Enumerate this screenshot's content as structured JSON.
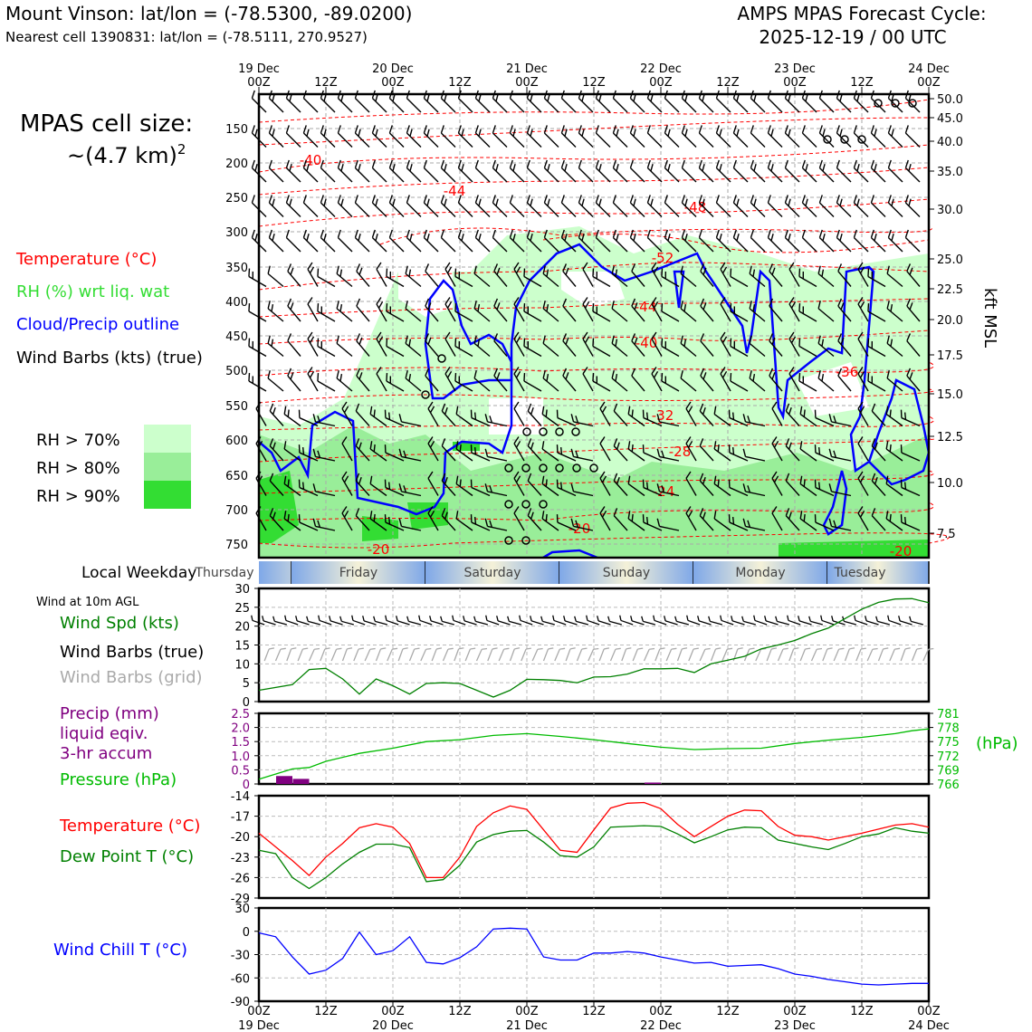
{
  "header": {
    "location_line": "Mount Vinson: lat/lon = (-78.5300, -89.0200)",
    "cell_line": "Nearest cell 1390831: lat/lon = (-78.5111, 270.9527)",
    "cycle_line1": "AMPS MPAS Forecast Cycle:",
    "cycle_line2": "2025-12-19 / 00 UTC"
  },
  "side": {
    "cell_size_1": "MPAS cell size:",
    "cell_size_2": "~(4.7 km)",
    "cell_size_sup": "2",
    "legend_temperature": "Temperature (°C)",
    "legend_rh": "RH (%) wrt liq. wat",
    "legend_cloud": "Cloud/Precip outline",
    "legend_wind": "Wind Barbs (kts) (true)",
    "rh70": "RH > 70%",
    "rh80": "RH > 80%",
    "rh90": "RH > 90%",
    "local_weekday": "Local Weekday",
    "wind10m": "Wind at 10m AGL",
    "wind_spd": "Wind Spd (kts)",
    "wind_barbs_true": "Wind Barbs (true)",
    "wind_barbs_grid": "Wind Barbs (grid)",
    "precip_1": "Precip (mm)",
    "precip_2": "liquid eqiv.",
    "precip_3": "3-hr accum",
    "pressure": "Pressure (hPa)",
    "pressure_unit": "(hPa)",
    "temp": "Temperature (°C)",
    "dewpoint": "Dew Point T (°C)",
    "windchill": "Wind Chill T (°C)",
    "kft": "kft MSL"
  },
  "colors": {
    "temperature": "#ff0000",
    "rh": "#33dd33",
    "cloud": "#0000ff",
    "precip": "#800080",
    "pressure": "#00aa00",
    "wind_spd": "#008000",
    "dewpoint": "#008000",
    "windchill": "#0000ff",
    "rh70": "#ccffcc",
    "rh80": "#99ee99",
    "rh90": "#33dd33"
  },
  "time_axis": {
    "top_labels": [
      [
        "19 Dec",
        "00Z"
      ],
      [
        "",
        "12Z"
      ],
      [
        "20 Dec",
        "00Z"
      ],
      [
        "",
        "12Z"
      ],
      [
        "21 Dec",
        "00Z"
      ],
      [
        "",
        "12Z"
      ],
      [
        "22 Dec",
        "00Z"
      ],
      [
        "",
        "12Z"
      ],
      [
        "23 Dec",
        "00Z"
      ],
      [
        "",
        "12Z"
      ],
      [
        "24 Dec",
        "00Z"
      ]
    ],
    "bottom_labels": [
      [
        "00Z",
        "19 Dec"
      ],
      [
        "12Z",
        ""
      ],
      [
        "00Z",
        "20 Dec"
      ],
      [
        "12Z",
        ""
      ],
      [
        "00Z",
        "21 Dec"
      ],
      [
        "12Z",
        ""
      ],
      [
        "00Z",
        "22 Dec"
      ],
      [
        "12Z",
        ""
      ],
      [
        "00Z",
        "23 Dec"
      ],
      [
        "12Z",
        ""
      ],
      [
        "00Z",
        "24 Dec"
      ]
    ],
    "weekdays": [
      "Thursday",
      "Friday",
      "Saturday",
      "Sunday",
      "Monday",
      "Tuesday"
    ]
  },
  "chart_data": [
    {
      "type": "line",
      "name": "vertical cross-section",
      "ylabel_left": "",
      "ylabel_right": "kft MSL",
      "pressure_ticks": [
        "150",
        "200",
        "250",
        "300",
        "350",
        "400",
        "450",
        "500",
        "550",
        "600",
        "650",
        "700",
        "750"
      ],
      "kft_ticks": [
        "50.0",
        "45.0",
        "40.0",
        "35.0",
        "30.0",
        "25.0",
        "22.5",
        "20.0",
        "17.5",
        "15.0",
        "12.5",
        "10.0",
        "7.5"
      ],
      "temperature_contour_labels": [
        "-40",
        "-44",
        "-48",
        "-52",
        "-44",
        "-40",
        "-36",
        "-32",
        "-28",
        "-24",
        "-20",
        "-20",
        "-20"
      ]
    },
    {
      "type": "line",
      "name": "Wind Spd (kts)",
      "x_hours": [
        0,
        6,
        9,
        12,
        15,
        18,
        21,
        24,
        27,
        30,
        33,
        36,
        39,
        42,
        45,
        48,
        51,
        54,
        57,
        60,
        63,
        66,
        69,
        72,
        75,
        78,
        81,
        84,
        87,
        90,
        93,
        96,
        99,
        102,
        105,
        108,
        111,
        114,
        117,
        120
      ],
      "values": [
        3,
        4.5,
        8.5,
        8.8,
        6,
        2,
        6,
        4.2,
        2,
        4.8,
        5,
        4.8,
        3,
        1.2,
        3,
        5.9,
        5.8,
        5.6,
        5,
        6.5,
        6.6,
        7.3,
        8.7,
        8.7,
        8.8,
        7.7,
        10,
        11,
        12,
        14,
        15,
        16.2,
        18,
        19.5,
        22,
        24.5,
        26.3,
        27.2,
        27.3,
        26.2
      ],
      "ylim": [
        0,
        30
      ],
      "yticks": [
        "0",
        "5",
        "10",
        "15",
        "20",
        "25",
        "30"
      ]
    },
    {
      "type": "bar",
      "name": "Precip (mm) 3-hr accum",
      "x_hours": [
        6,
        9,
        72
      ],
      "values": [
        0.28,
        0.18,
        0.05
      ],
      "ylim": [
        0,
        2.5
      ],
      "yticks": [
        "0",
        "0.5",
        "1.0",
        "1.5",
        "2.0",
        "2.5"
      ]
    },
    {
      "type": "line",
      "name": "Pressure (hPa)",
      "x_hours": [
        0,
        6,
        9,
        12,
        18,
        24,
        30,
        36,
        42,
        48,
        54,
        60,
        66,
        72,
        78,
        84,
        90,
        96,
        102,
        108,
        114,
        117,
        120
      ],
      "values": [
        767,
        769.2,
        769.5,
        770.8,
        772.5,
        773.6,
        775,
        775.4,
        776.3,
        776.7,
        776.1,
        775.4,
        774.6,
        773.8,
        773.3,
        773.5,
        773.6,
        774.6,
        775.3,
        775.9,
        776.7,
        777.3,
        777.7
      ],
      "ylim": [
        766,
        781
      ],
      "yticks": [
        "766",
        "769",
        "772",
        "775",
        "778",
        "781"
      ]
    },
    {
      "type": "line",
      "name": "Temperature (°C)",
      "x_hours": [
        0,
        6,
        9,
        12,
        15,
        18,
        21,
        24,
        27,
        30,
        33,
        36,
        39,
        42,
        45,
        48,
        51,
        54,
        57,
        60,
        63,
        66,
        69,
        72,
        75,
        78,
        81,
        84,
        87,
        90,
        93,
        96,
        99,
        102,
        105,
        108,
        111,
        114,
        117,
        120
      ],
      "values": [
        -19.5,
        -23.5,
        -25.7,
        -23,
        -21,
        -18.7,
        -18.1,
        -18.6,
        -21,
        -26,
        -26,
        -23,
        -18.5,
        -16.5,
        -15.5,
        -16,
        -19,
        -22,
        -22.3,
        -19,
        -15.8,
        -15.1,
        -15,
        -15.9,
        -18.2,
        -20,
        -18.5,
        -17,
        -16.1,
        -16.2,
        -18.5,
        -19.8,
        -20,
        -20.5,
        -20,
        -19.5,
        -18.9,
        -18.3,
        -18.1,
        -18.6
      ],
      "ylim": [
        -29,
        -14
      ],
      "yticks": [
        "-29",
        "-26",
        "-23",
        "-20",
        "-17",
        "-14"
      ]
    },
    {
      "type": "line",
      "name": "Dew Point T (°C)",
      "x_hours": [
        0,
        3,
        6,
        9,
        12,
        15,
        18,
        21,
        24,
        27,
        30,
        33,
        36,
        39,
        42,
        45,
        48,
        51,
        54,
        57,
        60,
        63,
        66,
        69,
        72,
        75,
        78,
        81,
        84,
        87,
        90,
        93,
        96,
        99,
        102,
        105,
        108,
        111,
        114,
        117,
        120
      ],
      "values": [
        -22,
        -22.5,
        -26,
        -27.6,
        -26,
        -24,
        -22.3,
        -21.1,
        -21.1,
        -21.6,
        -26.6,
        -26.3,
        -24.2,
        -20.8,
        -19.7,
        -19.2,
        -19.1,
        -20.8,
        -22.8,
        -23,
        -21.5,
        -18.6,
        -18.5,
        -18.4,
        -18.5,
        -19.6,
        -20.9,
        -20,
        -19,
        -18.6,
        -18.7,
        -20.5,
        -21,
        -21.5,
        -21.9,
        -21,
        -20,
        -19.6,
        -18.7,
        -19.2,
        -19.5
      ],
      "ylim": [
        -29,
        -14
      ],
      "yticks": [
        "-29",
        "-26",
        "-23",
        "-20",
        "-17",
        "-14"
      ]
    },
    {
      "type": "line",
      "name": "Wind Chill T (°C)",
      "x_hours": [
        0,
        3,
        6,
        9,
        12,
        15,
        18,
        21,
        24,
        27,
        30,
        33,
        36,
        39,
        42,
        45,
        48,
        51,
        54,
        57,
        60,
        63,
        66,
        69,
        72,
        75,
        78,
        81,
        84,
        87,
        90,
        93,
        96,
        99,
        102,
        105,
        108,
        111,
        114,
        117,
        120
      ],
      "values": [
        -2,
        -7,
        -33,
        -55,
        -50,
        -35,
        -1,
        -30,
        -25,
        -7,
        -40,
        -42,
        -34,
        -20,
        3,
        4,
        3,
        -33,
        -37,
        -37,
        -28,
        -28,
        -26,
        -28,
        -33,
        -37,
        -41,
        -40,
        -45,
        -44,
        -43,
        -48,
        -55,
        -58,
        -62,
        -65,
        -68,
        -69,
        -68,
        -67,
        -67
      ],
      "ylim": [
        -90,
        30
      ],
      "yticks": [
        "-90",
        "-60",
        "-30",
        "0",
        "30"
      ]
    }
  ]
}
